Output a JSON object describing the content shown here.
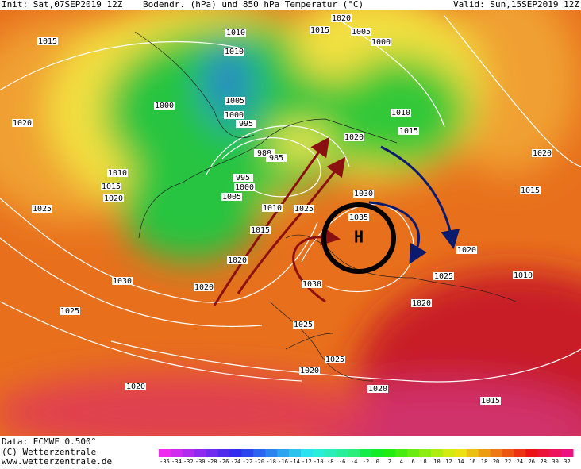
{
  "header": {
    "init": "Init: Sat,07SEP2019 12Z",
    "title": "Bodendr. (hPa) und 850 hPa Temperatur (°C)",
    "valid": "Valid: Sun,15SEP2019 12Z"
  },
  "map": {
    "high_symbol": "H",
    "isobar_labels": [
      1015,
      1020,
      1015,
      1010,
      1010,
      1005,
      1000,
      1000,
      1005,
      1000,
      995,
      1020,
      1010,
      1015,
      1020,
      980,
      985,
      995,
      1000,
      1005,
      1010,
      1015,
      1020,
      1025,
      1010,
      1025,
      1030,
      1035,
      1015,
      1020,
      1030,
      1020,
      1030,
      1025,
      1010,
      1020,
      1015,
      1020,
      1020,
      1025,
      1025,
      1025,
      1020,
      1020,
      1020,
      1015
    ]
  },
  "footer": {
    "data": "Data: ECMWF  0.500°",
    "copyright": "(C) Wetterzentrale",
    "url": "www.wetterzentrale.de"
  },
  "color_scale": {
    "labels": [
      -36,
      -34,
      -32,
      -30,
      -28,
      -26,
      -24,
      -22,
      -20,
      -18,
      -16,
      -14,
      -12,
      -10,
      -8,
      -6,
      -4,
      -2,
      0,
      2,
      4,
      6,
      8,
      10,
      12,
      14,
      16,
      18,
      20,
      22,
      24,
      26,
      28,
      30,
      32
    ]
  }
}
